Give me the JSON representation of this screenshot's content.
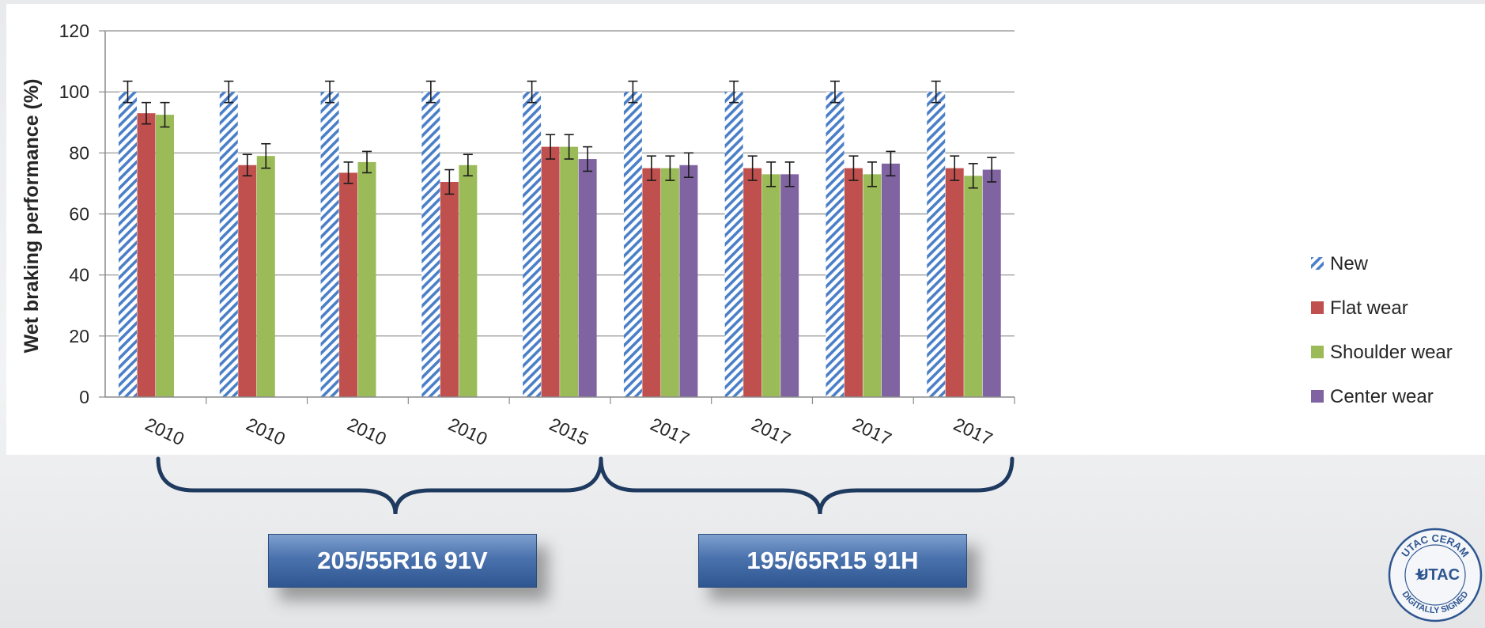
{
  "chart_data": {
    "type": "bar",
    "ylabel": "Wet braking performance (%)",
    "xlabel": "",
    "ylim": [
      0,
      120
    ],
    "yticks": [
      0,
      20,
      40,
      60,
      80,
      100,
      120
    ],
    "grid": true,
    "legend_position": "right",
    "categories": [
      "2010",
      "2010",
      "2010",
      "2010",
      "2015",
      "2017",
      "2017",
      "2017",
      "2017"
    ],
    "series": [
      {
        "name": "New",
        "pattern": "hatched",
        "color": "#4a7fc8",
        "values": [
          100,
          100,
          100,
          100,
          100,
          100,
          100,
          100,
          100
        ],
        "errors": [
          3.5,
          3.5,
          3.5,
          3.5,
          3.5,
          3.5,
          3.5,
          3.5,
          3.5
        ]
      },
      {
        "name": "Flat wear",
        "color": "#c0504d",
        "values": [
          93,
          76,
          73.5,
          70.5,
          82,
          75,
          75,
          75,
          75
        ],
        "errors": [
          3.5,
          3.5,
          3.5,
          4,
          4,
          4,
          4,
          4,
          4
        ]
      },
      {
        "name": "Shoulder wear",
        "color": "#9bbb59",
        "values": [
          92.5,
          79,
          77,
          76,
          82,
          75,
          73,
          73,
          72.5
        ],
        "errors": [
          4,
          4,
          3.5,
          3.5,
          4,
          4,
          4,
          4,
          4
        ]
      },
      {
        "name": "Center wear",
        "color": "#8064a2",
        "values": [
          null,
          null,
          null,
          null,
          78,
          76,
          73,
          76.5,
          74.5
        ],
        "errors": [
          null,
          null,
          null,
          null,
          4,
          4,
          4,
          4,
          4
        ]
      }
    ]
  },
  "groups": [
    {
      "label": "205/55R16 91V"
    },
    {
      "label": "195/65R15 91H"
    }
  ],
  "seal": {
    "top_text": "UTAC CERAM",
    "center_text": "UTAC",
    "bottom_text": "DIGITALLY SIGNED"
  }
}
